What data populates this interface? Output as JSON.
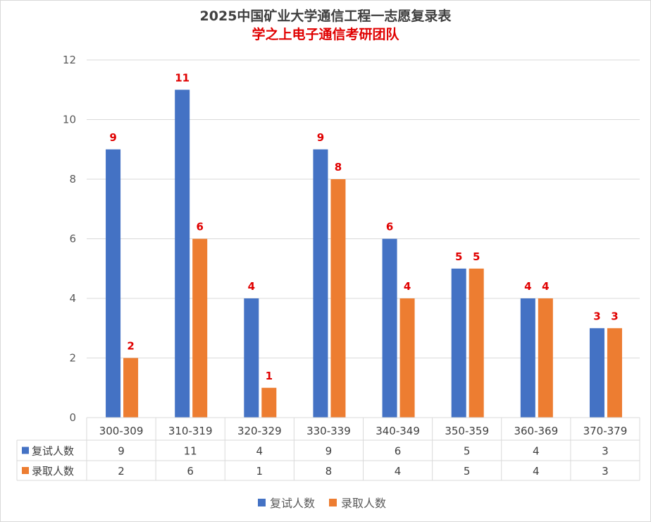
{
  "title": "2025中国矿业大学通信工程一志愿复录表",
  "subtitle": "学之上电子通信考研团队",
  "colors": {
    "series1": "#4472C4",
    "series2": "#ED7D31",
    "label": "#E00000"
  },
  "chart_data": {
    "type": "bar",
    "title": "2025中国矿业大学通信工程一志愿复录表",
    "subtitle": "学之上电子通信考研团队",
    "categories": [
      "300-309",
      "310-319",
      "320-329",
      "330-339",
      "340-349",
      "350-359",
      "360-369",
      "370-379"
    ],
    "series": [
      {
        "name": "复试人数",
        "values": [
          9,
          11,
          4,
          9,
          6,
          5,
          4,
          3
        ]
      },
      {
        "name": "录取人数",
        "values": [
          2,
          6,
          1,
          8,
          4,
          5,
          4,
          3
        ]
      }
    ],
    "yticks": [
      0,
      2,
      4,
      6,
      8,
      10,
      12
    ],
    "ylim": [
      0,
      12
    ],
    "grid": true,
    "data_table": true,
    "legend_position": "bottom"
  }
}
